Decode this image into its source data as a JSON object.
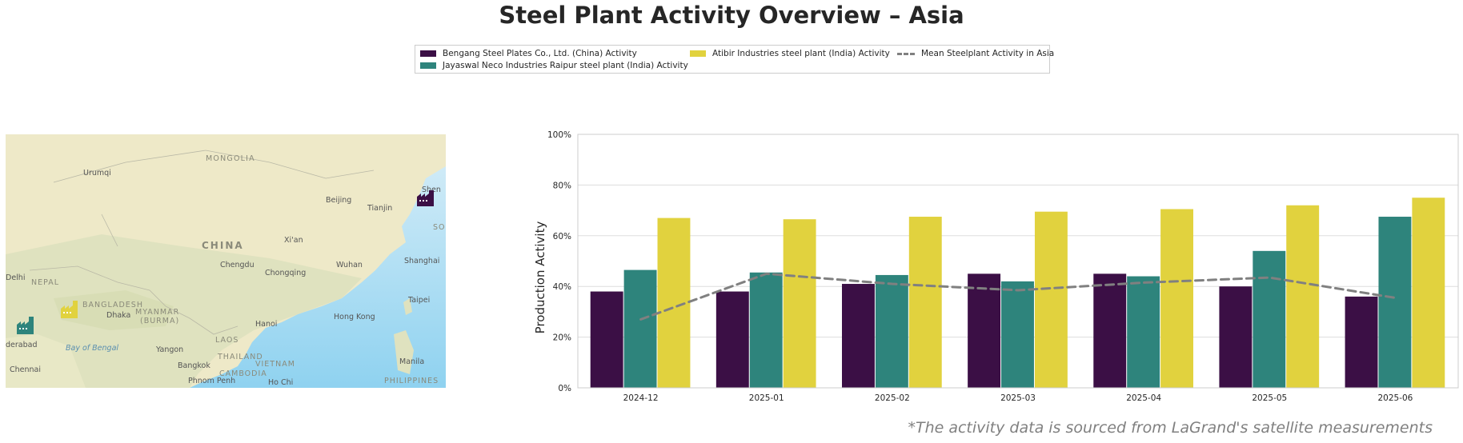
{
  "title": "Steel Plant Activity Overview – Asia",
  "footnote": "*The activity data is sourced from LaGrand's satellite measurements",
  "legend": {
    "items": [
      {
        "label": "Bengang Steel Plates Co., Ltd. (China) Activity",
        "color": "#3b0f45"
      },
      {
        "label": "Jayaswal Neco Industries Raipur steel plant (India) Activity",
        "color": "#2e847c"
      },
      {
        "label": "Atibir Industries steel plant (India) Activity",
        "color": "#e1d23e"
      },
      {
        "label": "Mean Steelplant Activity in Asia",
        "color": "#808080"
      }
    ]
  },
  "map": {
    "labels": [
      "MONGOLIA",
      "Urumqi",
      "Beijing",
      "Tianjin",
      "CHINA",
      "Xi'an",
      "Shanghai",
      "Chengdu",
      "Chongqing",
      "Wuhan",
      "Delhi",
      "NEPAL",
      "BANGLADESH",
      "MYANMAR",
      "(BURMA)",
      "Dhaka",
      "Taipei",
      "Hong Kong",
      "Hanoi",
      "LAOS",
      "derabad",
      "Bay of Bengal",
      "Yangon",
      "THAILAND",
      "VIETNAM",
      "Bangkok",
      "Manila",
      "Chennai",
      "CAMBODIA",
      "Phnom Penh",
      "Ho Chi",
      "PHILIPPINES",
      "Shen",
      "SO"
    ],
    "icons": [
      "factory-icon-bengang",
      "factory-icon-atibir",
      "factory-icon-jayaswal"
    ]
  },
  "chart_data": {
    "type": "bar",
    "title": "",
    "xlabel": "",
    "ylabel": "Production Activity",
    "ylim": [
      0,
      100
    ],
    "yticks": [
      "0%",
      "20%",
      "40%",
      "60%",
      "80%",
      "100%"
    ],
    "grid": true,
    "categories": [
      "2024-12",
      "2025-01",
      "2025-02",
      "2025-03",
      "2025-04",
      "2025-05",
      "2025-06"
    ],
    "series": [
      {
        "name": "Bengang Steel Plates Co., Ltd. (China) Activity",
        "color": "#3b0f45",
        "values": [
          38,
          38,
          41,
          45,
          45,
          40,
          36
        ]
      },
      {
        "name": "Jayaswal Neco Industries Raipur steel plant (India) Activity",
        "color": "#2e847c",
        "values": [
          46.5,
          45.5,
          44.5,
          42,
          44,
          54,
          67.5
        ]
      },
      {
        "name": "Atibir Industries steel plant (India) Activity",
        "color": "#e1d23e",
        "values": [
          67,
          66.5,
          67.5,
          69.5,
          70.5,
          72,
          75
        ]
      }
    ],
    "line": {
      "name": "Mean Steelplant Activity in Asia",
      "color": "#808080",
      "style": "dashed",
      "values": [
        27,
        45,
        41,
        38.5,
        41.5,
        43.5,
        35.5
      ]
    }
  }
}
